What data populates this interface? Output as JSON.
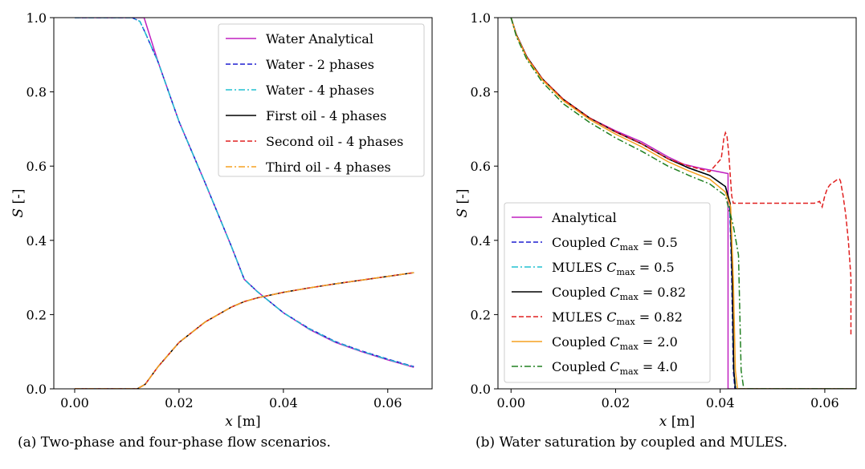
{
  "chart_data": [
    {
      "type": "line",
      "caption": "(a) Two-phase and four-phase flow scenarios.",
      "xlabel": "x [m]",
      "ylabel": "S [-]",
      "xlim": [
        -0.004,
        0.0685
      ],
      "ylim": [
        0.0,
        1.0
      ],
      "xticks": [
        "0.00",
        "0.02",
        "0.04",
        "0.06"
      ],
      "xtick_values": [
        0.0,
        0.02,
        0.04,
        0.06
      ],
      "yticks": [
        "0.0",
        "0.2",
        "0.4",
        "0.6",
        "0.8",
        "1.0"
      ],
      "ytick_values": [
        0.0,
        0.2,
        0.4,
        0.6,
        0.8,
        1.0
      ],
      "grid": false,
      "legend_position": "top-right",
      "series": [
        {
          "name": "Water Analytical",
          "color": "#c020c0",
          "dash": "solid",
          "x": [
            0.0,
            0.0133,
            0.0133,
            0.016,
            0.02,
            0.025,
            0.03,
            0.0325,
            0.035,
            0.04,
            0.045,
            0.05,
            0.055,
            0.06,
            0.065
          ],
          "y": [
            1.0,
            1.0,
            1.0,
            0.88,
            0.72,
            0.555,
            0.385,
            0.295,
            0.262,
            0.205,
            0.16,
            0.125,
            0.1,
            0.078,
            0.058
          ]
        },
        {
          "name": "Water - 2 phases",
          "color": "#1f1fd0",
          "dash": "dashed",
          "x": [
            0.0,
            0.011,
            0.0125,
            0.0135,
            0.016,
            0.02,
            0.025,
            0.03,
            0.0325,
            0.035,
            0.04,
            0.045,
            0.05,
            0.055,
            0.06,
            0.065
          ],
          "y": [
            1.0,
            1.0,
            0.99,
            0.96,
            0.88,
            0.72,
            0.555,
            0.385,
            0.295,
            0.262,
            0.205,
            0.162,
            0.127,
            0.102,
            0.08,
            0.06
          ]
        },
        {
          "name": "Water - 4 phases",
          "color": "#20c0d0",
          "dash": "dashdot",
          "x": [
            0.0,
            0.011,
            0.0125,
            0.0135,
            0.016,
            0.02,
            0.025,
            0.03,
            0.0325,
            0.035,
            0.04,
            0.045,
            0.05,
            0.055,
            0.06,
            0.065
          ],
          "y": [
            1.0,
            1.0,
            0.99,
            0.96,
            0.88,
            0.72,
            0.555,
            0.385,
            0.295,
            0.262,
            0.205,
            0.161,
            0.126,
            0.101,
            0.079,
            0.059
          ]
        },
        {
          "name": "First oil - 4 phases",
          "color": "#000000",
          "dash": "solid",
          "x": [
            0.0,
            0.012,
            0.0135,
            0.016,
            0.02,
            0.025,
            0.03,
            0.0325,
            0.035,
            0.04,
            0.045,
            0.05,
            0.055,
            0.06,
            0.065
          ],
          "y": [
            0.0,
            0.0,
            0.012,
            0.06,
            0.125,
            0.18,
            0.22,
            0.235,
            0.245,
            0.26,
            0.272,
            0.283,
            0.293,
            0.303,
            0.313
          ]
        },
        {
          "name": "Second oil - 4 phases",
          "color": "#e02020",
          "dash": "dashed",
          "x": [
            0.0,
            0.012,
            0.0135,
            0.016,
            0.02,
            0.025,
            0.03,
            0.0325,
            0.035,
            0.04,
            0.045,
            0.05,
            0.055,
            0.06,
            0.065
          ],
          "y": [
            0.0,
            0.0,
            0.012,
            0.06,
            0.125,
            0.18,
            0.22,
            0.235,
            0.245,
            0.26,
            0.272,
            0.283,
            0.293,
            0.303,
            0.313
          ]
        },
        {
          "name": "Third oil - 4 phases",
          "color": "#f5a020",
          "dash": "dashdot",
          "x": [
            0.0,
            0.012,
            0.0135,
            0.016,
            0.02,
            0.025,
            0.03,
            0.0325,
            0.035,
            0.04,
            0.045,
            0.05,
            0.055,
            0.06,
            0.065
          ],
          "y": [
            0.0,
            0.0,
            0.012,
            0.06,
            0.125,
            0.18,
            0.22,
            0.235,
            0.245,
            0.26,
            0.272,
            0.283,
            0.293,
            0.303,
            0.313
          ]
        }
      ]
    },
    {
      "type": "line",
      "caption": "(b) Water saturation by coupled and MULES.",
      "xlabel": "x [m]",
      "ylabel": "S [-]",
      "xlim": [
        -0.0025,
        0.066
      ],
      "ylim": [
        0.0,
        1.0
      ],
      "xticks": [
        "0.00",
        "0.02",
        "0.04",
        "0.06"
      ],
      "xtick_values": [
        0.0,
        0.02,
        0.04,
        0.06
      ],
      "yticks": [
        "0.0",
        "0.2",
        "0.4",
        "0.6",
        "0.8",
        "1.0"
      ],
      "ytick_values": [
        0.0,
        0.2,
        0.4,
        0.6,
        0.8,
        1.0
      ],
      "grid": false,
      "legend_position": "bottom-left",
      "series": [
        {
          "name": "Analytical",
          "color": "#c020c0",
          "dash": "solid",
          "x": [
            0.0,
            0.001,
            0.003,
            0.006,
            0.01,
            0.015,
            0.02,
            0.025,
            0.03,
            0.033,
            0.036,
            0.0415,
            0.0415,
            0.0425,
            0.066
          ],
          "y": [
            1.0,
            0.955,
            0.895,
            0.835,
            0.78,
            0.73,
            0.695,
            0.665,
            0.625,
            0.605,
            0.595,
            0.58,
            0.0,
            0.0,
            0.0
          ]
        },
        {
          "name": "Coupled Cmax = 0.5",
          "color": "#1f1fd0",
          "dash": "dashed",
          "x": [
            0.0,
            0.001,
            0.003,
            0.006,
            0.01,
            0.015,
            0.02,
            0.025,
            0.03,
            0.034,
            0.038,
            0.041,
            0.0418,
            0.0422,
            0.0425,
            0.0428,
            0.066
          ],
          "y": [
            1.0,
            0.955,
            0.895,
            0.835,
            0.78,
            0.73,
            0.692,
            0.66,
            0.62,
            0.595,
            0.575,
            0.545,
            0.5,
            0.3,
            0.05,
            0.0,
            0.0
          ]
        },
        {
          "name": "MULES Cmax = 0.5",
          "color": "#20c0d0",
          "dash": "dashdot",
          "x": [
            0.0,
            0.001,
            0.003,
            0.006,
            0.01,
            0.015,
            0.02,
            0.025,
            0.03,
            0.034,
            0.038,
            0.041,
            0.0418,
            0.0423,
            0.0426,
            0.043,
            0.066
          ],
          "y": [
            1.0,
            0.955,
            0.895,
            0.835,
            0.78,
            0.73,
            0.692,
            0.66,
            0.62,
            0.595,
            0.575,
            0.545,
            0.5,
            0.3,
            0.05,
            0.0,
            0.0
          ]
        },
        {
          "name": "Coupled Cmax = 0.82",
          "color": "#000000",
          "dash": "solid",
          "x": [
            0.0,
            0.001,
            0.003,
            0.006,
            0.01,
            0.015,
            0.02,
            0.025,
            0.03,
            0.034,
            0.038,
            0.041,
            0.0419,
            0.0423,
            0.0426,
            0.0429,
            0.066
          ],
          "y": [
            1.0,
            0.955,
            0.895,
            0.835,
            0.78,
            0.73,
            0.692,
            0.66,
            0.62,
            0.595,
            0.575,
            0.545,
            0.5,
            0.3,
            0.05,
            0.0,
            0.0
          ]
        },
        {
          "name": "MULES Cmax = 0.82",
          "color": "#e02020",
          "dash": "dashed",
          "x": [
            0.0,
            0.001,
            0.003,
            0.006,
            0.01,
            0.015,
            0.02,
            0.025,
            0.03,
            0.034,
            0.038,
            0.0402,
            0.0407,
            0.041,
            0.0413,
            0.0416,
            0.0419,
            0.0422,
            0.0425,
            0.043,
            0.045,
            0.05,
            0.055,
            0.058,
            0.059,
            0.0595,
            0.06,
            0.0605,
            0.061,
            0.0615,
            0.062,
            0.0625,
            0.0628,
            0.063,
            0.0635,
            0.064,
            0.0645,
            0.065,
            0.065
          ],
          "y": [
            1.0,
            0.955,
            0.895,
            0.835,
            0.78,
            0.73,
            0.692,
            0.66,
            0.62,
            0.6,
            0.585,
            0.62,
            0.675,
            0.69,
            0.68,
            0.64,
            0.58,
            0.52,
            0.5,
            0.5,
            0.5,
            0.5,
            0.5,
            0.5,
            0.505,
            0.49,
            0.52,
            0.54,
            0.55,
            0.555,
            0.56,
            0.565,
            0.565,
            0.56,
            0.52,
            0.47,
            0.4,
            0.3,
            0.14
          ]
        },
        {
          "name": "Coupled Cmax = 2.0",
          "color": "#f5a020",
          "dash": "solid",
          "x": [
            0.0,
            0.001,
            0.003,
            0.006,
            0.01,
            0.015,
            0.02,
            0.025,
            0.03,
            0.034,
            0.038,
            0.041,
            0.042,
            0.0425,
            0.0429,
            0.0433,
            0.066
          ],
          "y": [
            1.0,
            0.953,
            0.892,
            0.832,
            0.776,
            0.726,
            0.686,
            0.652,
            0.612,
            0.587,
            0.565,
            0.53,
            0.49,
            0.3,
            0.05,
            0.0,
            0.0
          ]
        },
        {
          "name": "Coupled Cmax = 4.0",
          "color": "#208020",
          "dash": "dashdot",
          "x": [
            0.0,
            0.001,
            0.003,
            0.006,
            0.01,
            0.015,
            0.02,
            0.025,
            0.03,
            0.034,
            0.038,
            0.041,
            0.0425,
            0.0435,
            0.044,
            0.0445,
            0.066
          ],
          "y": [
            1.0,
            0.95,
            0.888,
            0.826,
            0.768,
            0.718,
            0.676,
            0.64,
            0.6,
            0.575,
            0.552,
            0.52,
            0.44,
            0.36,
            0.05,
            0.0,
            0.0
          ]
        }
      ]
    }
  ]
}
